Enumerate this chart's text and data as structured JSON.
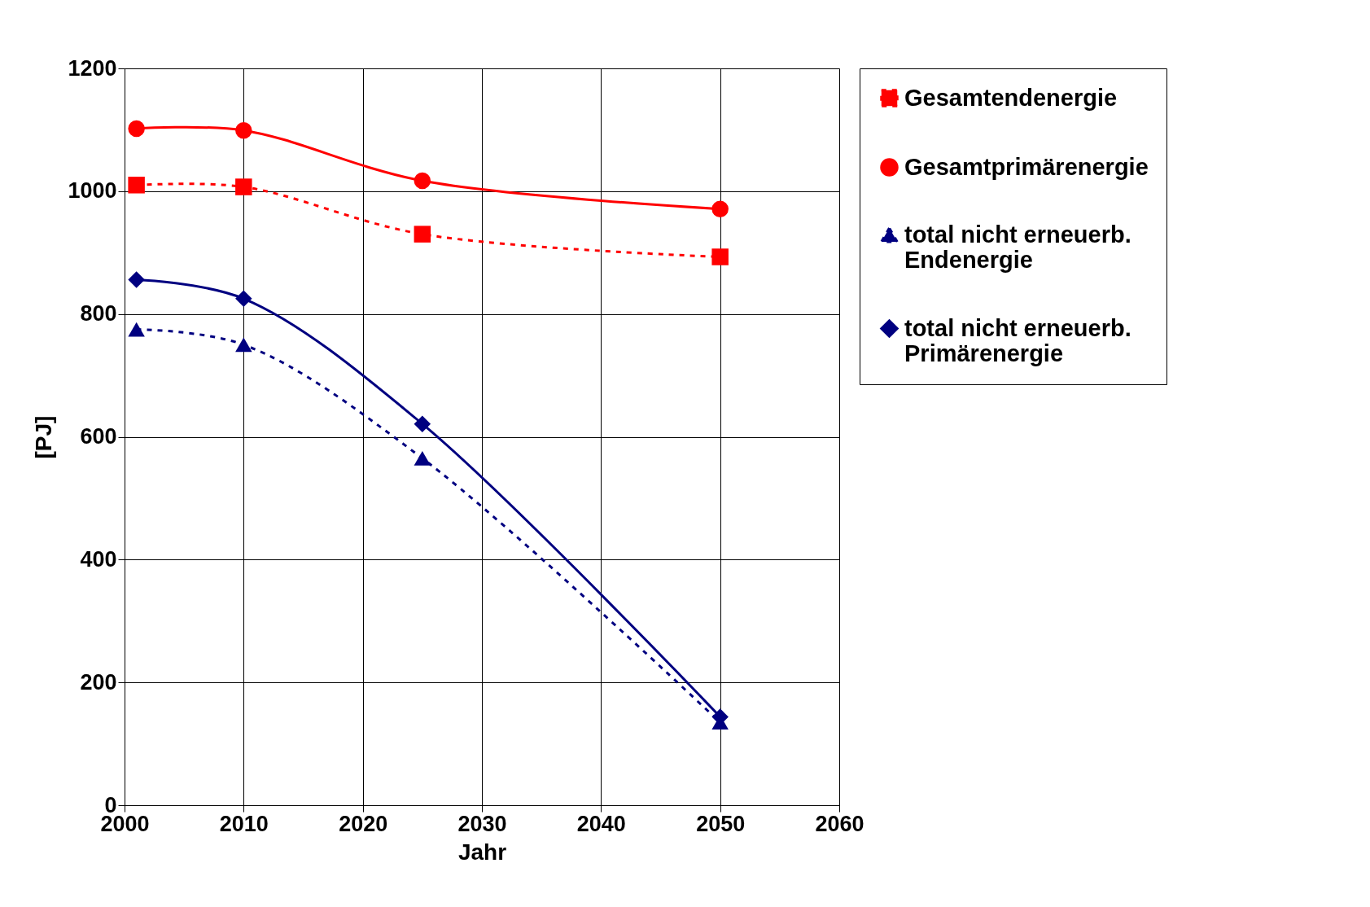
{
  "chart_data": {
    "type": "line",
    "xlabel": "Jahr",
    "ylabel": "[PJ]",
    "x": [
      2001,
      2010,
      2025,
      2050
    ],
    "series": [
      {
        "name": "Gesamtendenergie",
        "color": "#ff0000",
        "marker": "square",
        "line_style": "dashed",
        "values": [
          1010,
          1007,
          930,
          893
        ]
      },
      {
        "name": "Gesamtprimärenergie",
        "color": "#ff0000",
        "marker": "circle",
        "line_style": "solid",
        "values": [
          1102,
          1099,
          1017,
          971
        ]
      },
      {
        "name": "total nicht erneuerb. Endenergie",
        "color": "#000080",
        "marker": "triangle",
        "line_style": "dashed",
        "values": [
          775,
          750,
          565,
          135
        ]
      },
      {
        "name": "total nicht erneuerb. Primärenergie",
        "color": "#000080",
        "marker": "diamond",
        "line_style": "solid",
        "values": [
          856,
          825,
          621,
          144
        ]
      }
    ],
    "xlim": [
      2000,
      2060
    ],
    "xticks": [
      2000,
      2010,
      2020,
      2030,
      2040,
      2050,
      2060
    ],
    "ylim": [
      0,
      1200
    ],
    "yticks": [
      0,
      200,
      400,
      600,
      800,
      1000,
      1200
    ],
    "grid": true,
    "legend": "right"
  }
}
